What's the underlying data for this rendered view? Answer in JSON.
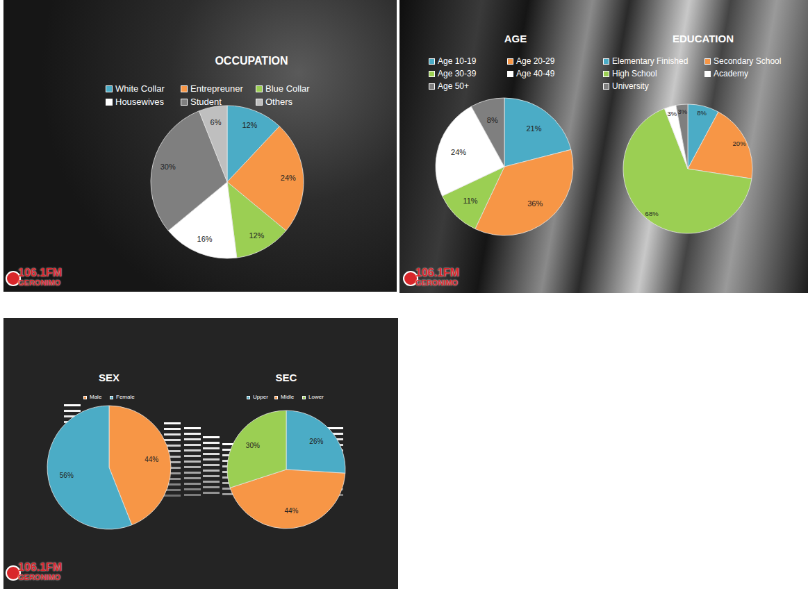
{
  "chart_data": [
    {
      "type": "pie",
      "title": "OCCUPATION",
      "categories": [
        "White Collar",
        "Entrepreuner",
        "Blue Collar",
        "Housewives",
        "Student",
        "Others"
      ],
      "values": [
        12,
        24,
        12,
        16,
        30,
        6
      ],
      "value_labels": [
        "12%",
        "24%",
        "12%",
        "16%",
        "30%",
        "6%"
      ],
      "colors": [
        "#4bacc6",
        "#f79646",
        "#9bcf53",
        "#ffffff",
        "#7f7f7f",
        "#bfbfbf"
      ],
      "data_labels": true,
      "legend": "top"
    },
    {
      "type": "pie",
      "title": "AGE",
      "categories": [
        "Age 10-19",
        "Age 20-29",
        "Age 30-39",
        "Age 40-49",
        "Age 50+"
      ],
      "values": [
        21,
        36,
        11,
        24,
        8
      ],
      "value_labels": [
        "21%",
        "36%",
        "11%",
        "24%",
        "8%"
      ],
      "colors": [
        "#4bacc6",
        "#f79646",
        "#9bcf53",
        "#ffffff",
        "#7f7f7f"
      ],
      "data_labels": true,
      "legend": "top"
    },
    {
      "type": "pie",
      "title": "EDUCATION",
      "categories": [
        "Elementary Finished",
        "Secondary School",
        "High School",
        "Academy",
        "University"
      ],
      "values": [
        8,
        20,
        68,
        3,
        3
      ],
      "value_labels": [
        "8%",
        "20%",
        "68%",
        "3%",
        "3%"
      ],
      "colors": [
        "#4bacc6",
        "#f79646",
        "#9bcf53",
        "#ffffff",
        "#7f7f7f"
      ],
      "data_labels": true,
      "legend": "top"
    },
    {
      "type": "pie",
      "title": "SEX",
      "categories": [
        "Male",
        "Female"
      ],
      "values": [
        44,
        56
      ],
      "value_labels": [
        "44%",
        "56%"
      ],
      "colors": [
        "#f79646",
        "#4bacc6"
      ],
      "data_labels": true,
      "legend": "top"
    },
    {
      "type": "pie",
      "title": "SEC",
      "categories": [
        "Upper",
        "Midle",
        "Lower"
      ],
      "values": [
        26,
        44,
        30
      ],
      "value_labels": [
        "26%",
        "44%",
        "30%"
      ],
      "colors": [
        "#4bacc6",
        "#f79646",
        "#9bcf53"
      ],
      "data_labels": true,
      "legend": "top"
    }
  ],
  "logo": [
    "106.1FM",
    "GERONIMO"
  ]
}
